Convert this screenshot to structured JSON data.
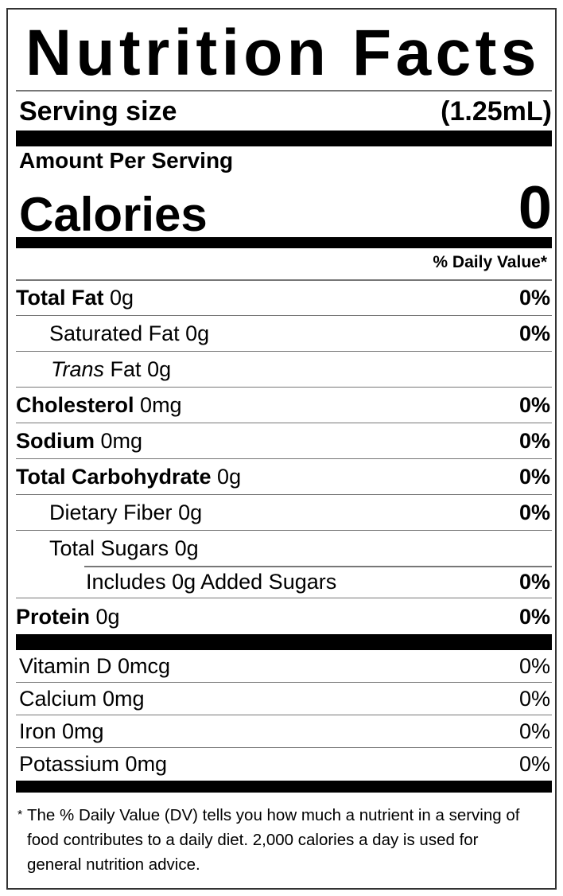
{
  "title": "Nutrition Facts",
  "serving": {
    "label": "Serving size",
    "value": "(1.25mL)"
  },
  "amount_per_serving": "Amount Per Serving",
  "calories": {
    "label": "Calories",
    "value": "0"
  },
  "daily_value_header": "% Daily Value*",
  "nutrients": [
    {
      "name": "Total Fat",
      "amount": "0g",
      "dv": "0%"
    },
    {
      "name": "Saturated Fat",
      "amount": "0g",
      "dv": "0%"
    },
    {
      "name_italic": "Trans",
      "name": "Fat",
      "amount": "0g"
    },
    {
      "name": "Cholesterol",
      "amount": "0mg",
      "dv": "0%"
    },
    {
      "name": "Sodium",
      "amount": "0mg",
      "dv": "0%"
    },
    {
      "name": "Total Carbohydrate",
      "amount": "0g",
      "dv": "0%"
    },
    {
      "name": "Dietary Fiber",
      "amount": "0g",
      "dv": "0%"
    },
    {
      "name": "Total Sugars",
      "amount": "0g"
    },
    {
      "text": "Includes 0g Added Sugars",
      "dv": "0%"
    },
    {
      "name": "Protein",
      "amount": "0g",
      "dv": "0%"
    }
  ],
  "vitamins": [
    {
      "text": "Vitamin D 0mcg",
      "dv": "0%"
    },
    {
      "text": "Calcium 0mg",
      "dv": "0%"
    },
    {
      "text": "Iron 0mg",
      "dv": "0%"
    },
    {
      "text": "Potassium 0mg",
      "dv": "0%"
    }
  ],
  "footnote": {
    "star": "*",
    "text": "The % Daily Value (DV) tells you how much a nutrient in a serving of food contributes to a daily diet. 2,000 calories a day is used for general nutrition advice."
  }
}
